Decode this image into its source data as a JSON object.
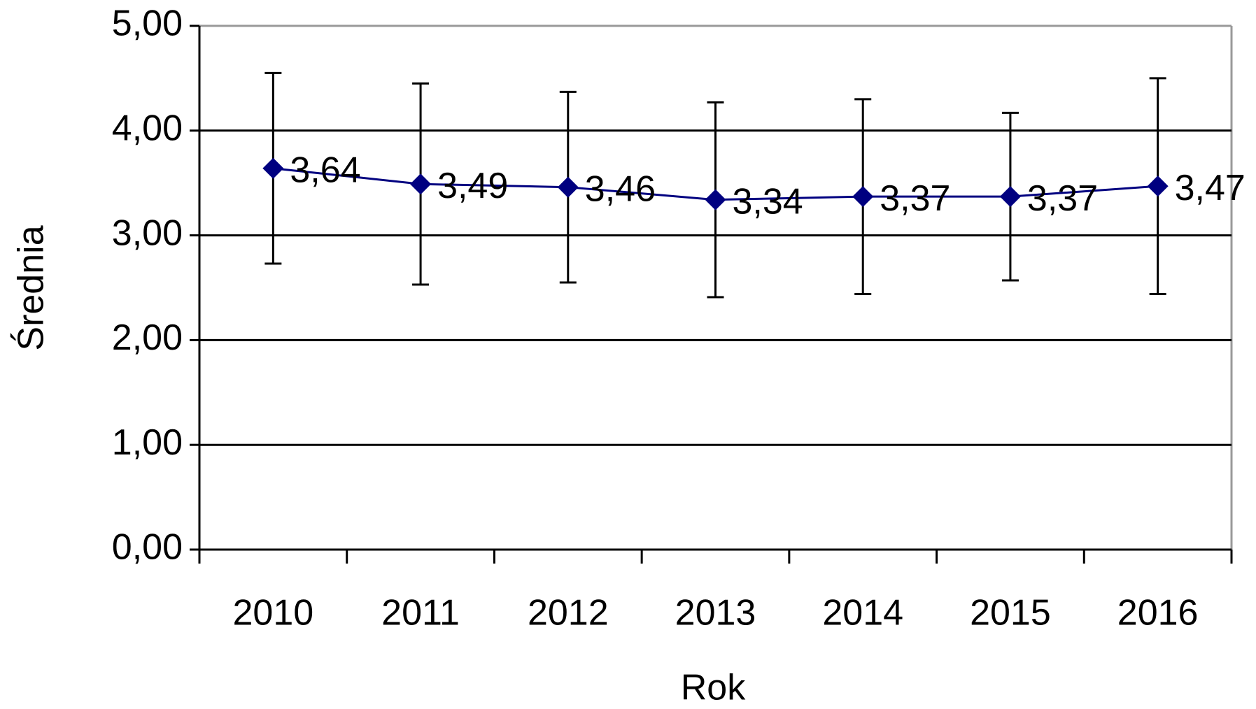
{
  "chart_data": {
    "type": "line",
    "xlabel": "Rok",
    "ylabel": "Średnia",
    "categories": [
      "2010",
      "2011",
      "2012",
      "2013",
      "2014",
      "2015",
      "2016"
    ],
    "series": [
      {
        "name": "Średnia",
        "color": "#000080",
        "values": [
          3.64,
          3.49,
          3.46,
          3.34,
          3.37,
          3.37,
          3.47
        ],
        "value_labels": [
          "3,64",
          "3,49",
          "3,46",
          "3,34",
          "3,37",
          "3,37",
          "3,47"
        ],
        "errors": [
          0.91,
          0.96,
          0.91,
          0.93,
          0.93,
          0.8,
          1.03
        ]
      }
    ],
    "ylim": [
      0,
      5
    ],
    "yticks": [
      {
        "value": 0,
        "label": "0,00"
      },
      {
        "value": 1,
        "label": "1,00"
      },
      {
        "value": 2,
        "label": "2,00"
      },
      {
        "value": 3,
        "label": "3,00"
      },
      {
        "value": 4,
        "label": "4,00"
      },
      {
        "value": 5,
        "label": "5,00"
      }
    ],
    "grid": true
  }
}
